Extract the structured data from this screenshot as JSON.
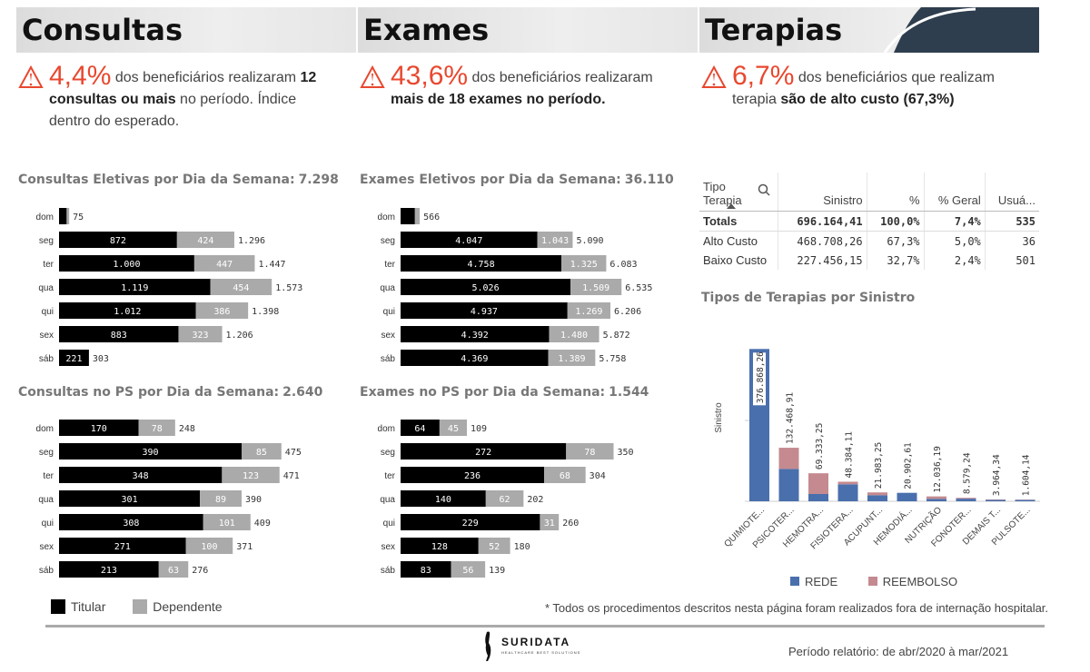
{
  "sections": [
    {
      "title": "Consultas",
      "pct": "4,4%",
      "pre": " dos beneficiários realizaram ",
      "bold": "12 consultas ou mais",
      "post": " no período. Índice dentro do esperado."
    },
    {
      "title": "Exames",
      "pct": "43,6%",
      "pre": " dos beneficiários realizaram ",
      "bold": "mais de 18 exames no período.",
      "post": ""
    },
    {
      "title": "Terapias",
      "pct": "6,7%",
      "pre": " dos beneficiários que realizam terapia ",
      "bold": "são de alto custo (67,3%)",
      "post": ""
    }
  ],
  "chart_titles": {
    "c1": {
      "label": "Consultas Eletivas por Dia da Semana:",
      "total": "7.298"
    },
    "c2": {
      "label": "Exames Eletivos por Dia da Semana:",
      "total": "36.110"
    },
    "c3": {
      "label": "Consultas no PS por Dia da Semana:",
      "total": "2.640"
    },
    "c4": {
      "label": "Exames no PS por Dia da Semana:",
      "total": "1.544"
    },
    "c5": {
      "label": "Tipos de Terapias por Sinistro"
    }
  },
  "table": {
    "headers": [
      "Tipo Terapia",
      "Sinistro",
      "%",
      "% Geral",
      "Usuá..."
    ],
    "rows": [
      [
        "Totals",
        "696.164,41",
        "100,0%",
        "7,4%",
        "535"
      ],
      [
        "Alto Custo",
        "468.708,26",
        "67,3%",
        "5,0%",
        "36"
      ],
      [
        "Baixo Custo",
        "227.456,15",
        "32,7%",
        "2,4%",
        "501"
      ]
    ]
  },
  "legend": {
    "titular": "Titular",
    "dependente": "Dependente",
    "rede": "REDE",
    "reembolso": "REEMBOLSO"
  },
  "colors": {
    "titular": "#000000",
    "dependente": "#aaaaaa",
    "rede": "#4a6fad",
    "reembolso": "#c48a8f",
    "accent": "#e8482f"
  },
  "footnote": "* Todos os procedimentos descritos nesta página foram realizados fora de internação hospitalar.",
  "period": "Período relatório: de abr/2020 à mar/2021",
  "logo": {
    "name": "SURIDATA",
    "tagline": "HEALTHCARE BEST SOLUTIONS"
  },
  "chart_data": [
    {
      "type": "bar",
      "id": "c1",
      "categories": [
        "dom",
        "seg",
        "ter",
        "qua",
        "qui",
        "sex",
        "sáb"
      ],
      "series": [
        {
          "name": "Titular",
          "values": [
            null,
            872,
            1000,
            1119,
            1012,
            883,
            221
          ]
        },
        {
          "name": "Dependente",
          "values": [
            null,
            424,
            447,
            454,
            386,
            323,
            null
          ]
        }
      ],
      "totals": [
        75,
        1296,
        1447,
        1573,
        1398,
        1206,
        303
      ],
      "value_labels": {
        "titular": [
          "",
          "872",
          "1.000",
          "1.119",
          "1.012",
          "883",
          "221"
        ],
        "dependente": [
          "",
          "424",
          "447",
          "454",
          "386",
          "323",
          ""
        ],
        "total": [
          "75",
          "1.296",
          "1.447",
          "1.573",
          "1.398",
          "1.206",
          "303"
        ]
      }
    },
    {
      "type": "bar",
      "id": "c2",
      "categories": [
        "dom",
        "seg",
        "ter",
        "qua",
        "qui",
        "sex",
        "sáb"
      ],
      "series": [
        {
          "name": "Titular",
          "values": [
            null,
            4047,
            4758,
            5026,
            4937,
            4392,
            4369
          ]
        },
        {
          "name": "Dependente",
          "values": [
            null,
            1043,
            1325,
            1509,
            1269,
            1480,
            1389
          ]
        }
      ],
      "totals": [
        566,
        5090,
        6083,
        6535,
        6206,
        5872,
        5758
      ],
      "value_labels": {
        "titular": [
          "",
          "4.047",
          "4.758",
          "5.026",
          "4.937",
          "4.392",
          "4.369"
        ],
        "dependente": [
          "",
          "1.043",
          "1.325",
          "1.509",
          "1.269",
          "1.480",
          "1.389"
        ],
        "total": [
          "566",
          "5.090",
          "6.083",
          "6.535",
          "6.206",
          "5.872",
          "5.758"
        ]
      }
    },
    {
      "type": "bar",
      "id": "c3",
      "categories": [
        "dom",
        "seg",
        "ter",
        "qua",
        "qui",
        "sex",
        "sáb"
      ],
      "series": [
        {
          "name": "Titular",
          "values": [
            170,
            390,
            348,
            301,
            308,
            271,
            213
          ]
        },
        {
          "name": "Dependente",
          "values": [
            78,
            85,
            123,
            89,
            101,
            100,
            63
          ]
        }
      ],
      "totals": [
        248,
        475,
        471,
        390,
        409,
        371,
        276
      ],
      "value_labels": {
        "titular": [
          "170",
          "390",
          "348",
          "301",
          "308",
          "271",
          "213"
        ],
        "dependente": [
          "78",
          "85",
          "123",
          "89",
          "101",
          "100",
          "63"
        ],
        "total": [
          "248",
          "475",
          "471",
          "390",
          "409",
          "371",
          "276"
        ]
      }
    },
    {
      "type": "bar",
      "id": "c4",
      "categories": [
        "dom",
        "seg",
        "ter",
        "qua",
        "qui",
        "sex",
        "sáb"
      ],
      "series": [
        {
          "name": "Titular",
          "values": [
            64,
            272,
            236,
            140,
            229,
            128,
            83
          ]
        },
        {
          "name": "Dependente",
          "values": [
            45,
            78,
            68,
            62,
            31,
            52,
            56
          ]
        }
      ],
      "totals": [
        109,
        350,
        304,
        202,
        260,
        180,
        139
      ],
      "value_labels": {
        "titular": [
          "64",
          "272",
          "236",
          "140",
          "229",
          "128",
          "83"
        ],
        "dependente": [
          "45",
          "78",
          "68",
          "62",
          "31",
          "52",
          "56"
        ],
        "total": [
          "109",
          "350",
          "304",
          "202",
          "260",
          "180",
          "139"
        ]
      }
    },
    {
      "type": "bar",
      "id": "c5",
      "ylabel": "Sinistro",
      "categories": [
        "QUIMIOTE...",
        "PSICOTER...",
        "HEMOTRA...",
        "FISIOTERA...",
        "ACUPUNT...",
        "HEMODIÁ...",
        "NUTRIÇÃO",
        "FONOTER...",
        "DEMAIS T...",
        "PULSOTE..."
      ],
      "totals": [
        376868.26,
        132468.91,
        69333.25,
        48384.11,
        21983.25,
        20902.61,
        12036.19,
        8579.24,
        3964.34,
        1604.14
      ],
      "total_labels": [
        "376.868,26",
        "132.468,91",
        "69.333,25",
        "48.384,11",
        "21.983,25",
        "20.902,61",
        "12.036,19",
        "8.579,24",
        "3.964,34",
        "1.604,14"
      ],
      "series": [
        {
          "name": "REDE",
          "values": [
            376868.26,
            80000,
            18000,
            42000,
            15000,
            20902.61,
            6000,
            6500,
            3000,
            1000
          ]
        },
        {
          "name": "REEMBOLSO",
          "values": [
            0,
            52468.91,
            51333.25,
            6384.11,
            6983.25,
            0,
            6036.19,
            2079.24,
            964.34,
            604.14
          ]
        }
      ],
      "ylim": [
        0,
        400000
      ]
    }
  ]
}
